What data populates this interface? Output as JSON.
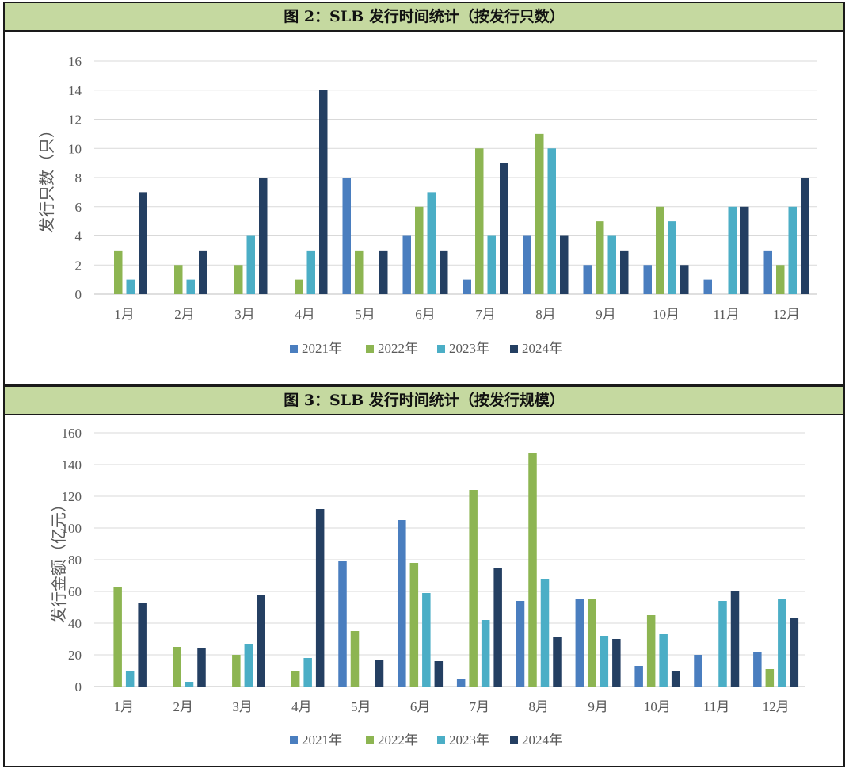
{
  "colors": {
    "2021": "#4a7ebf",
    "2022": "#8db552",
    "2023": "#4baec6",
    "2024": "#243f62",
    "title_bg": "#c5d9a0",
    "grid": "#d9d9d9",
    "axis_text": "#595959"
  },
  "chart_data": [
    {
      "type": "bar",
      "title": "图 2：SLB 发行时间统计（按发行只数）",
      "ylabel": "发行只数（只）",
      "xlabel": "",
      "ylim": [
        0,
        16
      ],
      "yticks": [
        "0",
        "2",
        "4",
        "6",
        "8",
        "10",
        "12",
        "14",
        "16"
      ],
      "categories": [
        "1月",
        "2月",
        "3月",
        "4月",
        "5月",
        "6月",
        "7月",
        "8月",
        "9月",
        "10月",
        "11月",
        "12月"
      ],
      "legend": "bottom",
      "series": [
        {
          "name": "2021年",
          "values": [
            0,
            0,
            0,
            0,
            8,
            4,
            1,
            4,
            2,
            2,
            1,
            3
          ]
        },
        {
          "name": "2022年",
          "values": [
            3,
            2,
            2,
            1,
            3,
            6,
            10,
            11,
            5,
            6,
            0,
            2
          ]
        },
        {
          "name": "2023年",
          "values": [
            1,
            1,
            4,
            3,
            0,
            7,
            4,
            10,
            4,
            5,
            6,
            6
          ]
        },
        {
          "name": "2024年",
          "values": [
            7,
            3,
            8,
            14,
            3,
            3,
            9,
            4,
            3,
            2,
            6,
            8
          ]
        }
      ]
    },
    {
      "type": "bar",
      "title": "图 3：SLB 发行时间统计（按发行规模）",
      "ylabel": "发行金额（亿元）",
      "xlabel": "",
      "ylim": [
        0,
        160
      ],
      "yticks": [
        "0",
        "20",
        "40",
        "60",
        "80",
        "100",
        "120",
        "140",
        "160"
      ],
      "categories": [
        "1月",
        "2月",
        "3月",
        "4月",
        "5月",
        "6月",
        "7月",
        "8月",
        "9月",
        "10月",
        "11月",
        "12月"
      ],
      "legend": "bottom",
      "series": [
        {
          "name": "2021年",
          "values": [
            0,
            0,
            0,
            0,
            79,
            105,
            5,
            54,
            55,
            13,
            20,
            22
          ]
        },
        {
          "name": "2022年",
          "values": [
            63,
            25,
            20,
            10,
            35,
            78,
            124,
            147,
            55,
            45,
            0,
            11
          ]
        },
        {
          "name": "2023年",
          "values": [
            10,
            3,
            27,
            18,
            0,
            59,
            42,
            68,
            32,
            33,
            54,
            55
          ]
        },
        {
          "name": "2024年",
          "values": [
            53,
            24,
            58,
            112,
            17,
            16,
            75,
            31,
            30,
            10,
            60,
            43
          ]
        }
      ]
    }
  ]
}
